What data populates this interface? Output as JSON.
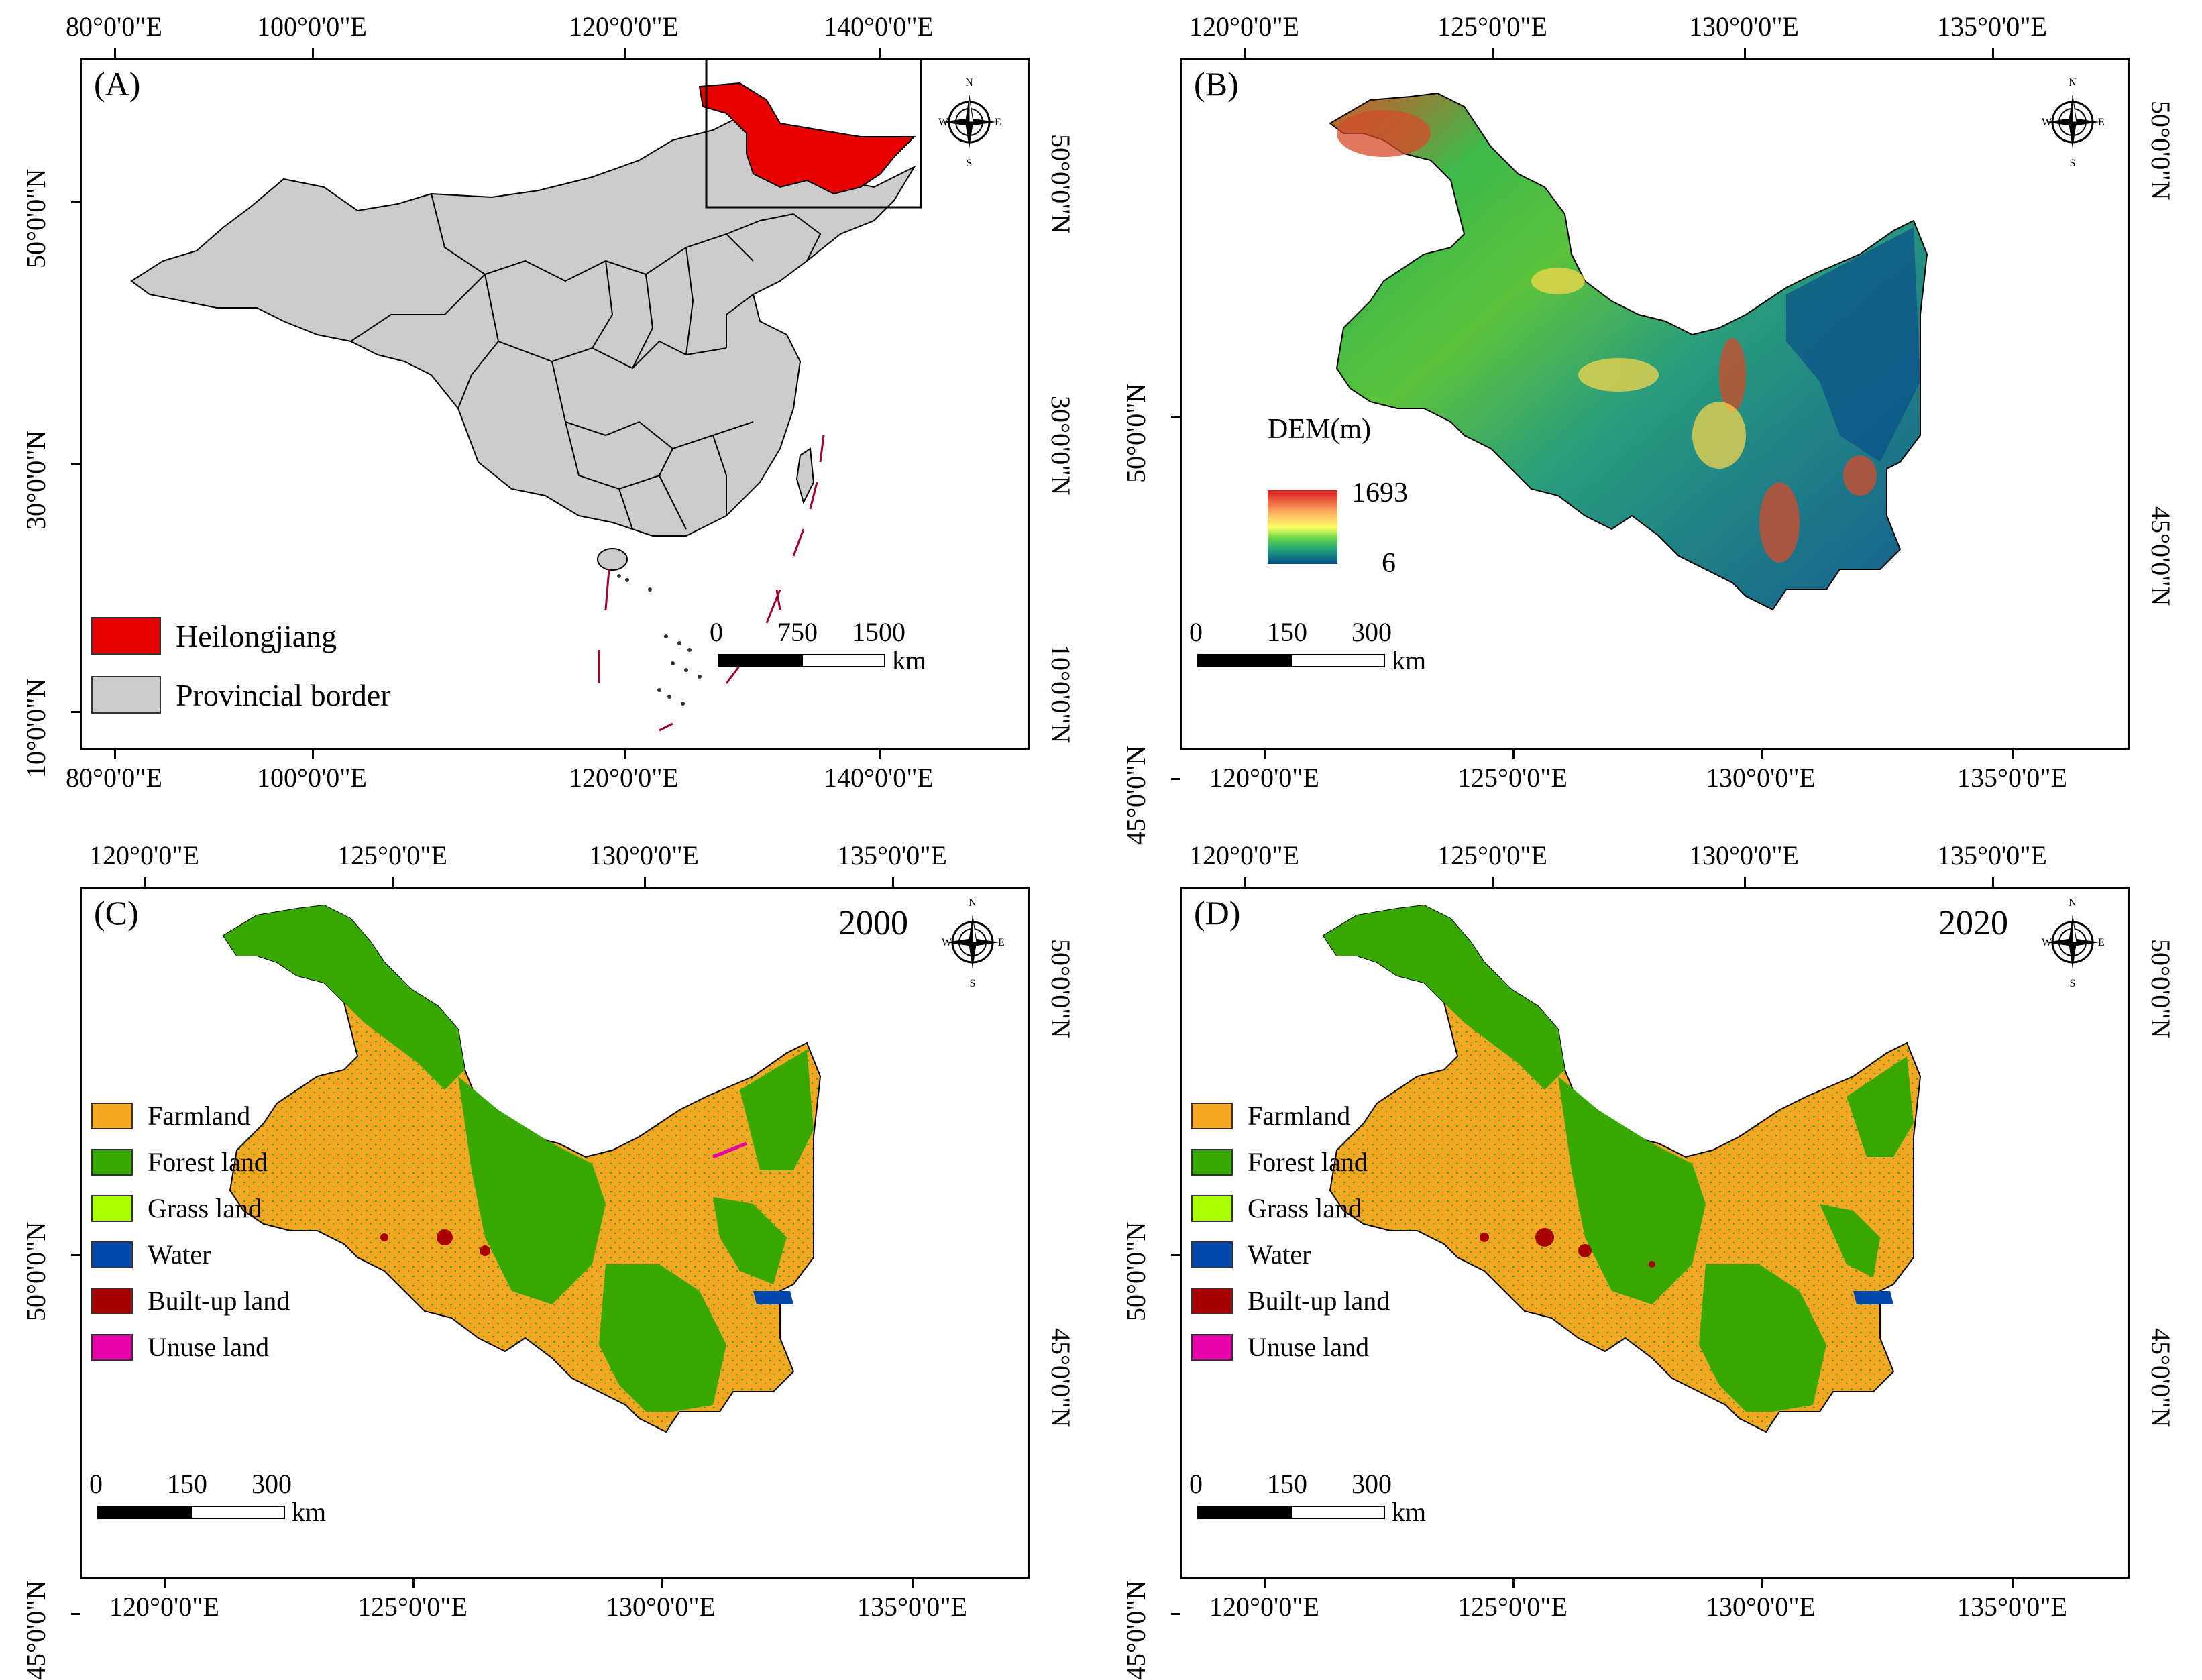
{
  "panels": {
    "a": {
      "label": "(A)",
      "top_ticks": [
        "80°0'0\"E",
        "100°0'0\"E",
        "120°0'0\"E",
        "140°0'0\"E"
      ],
      "bottom_ticks": [
        "80°0'0\"E",
        "100°0'0\"E",
        "120°0'0\"E",
        "140°0'0\"E"
      ],
      "left_ticks": [
        "50°0'0\"N",
        "30°0'0\"N",
        "10°0'0\"N"
      ],
      "right_ticks": [
        "50°0'0\"N",
        "30°0'0\"N",
        "10°0'0\"N"
      ],
      "legend": [
        {
          "label": "Heilongjiang",
          "color": "#e60000"
        },
        {
          "label": "Provincial border",
          "color": "#cccccc"
        }
      ],
      "scale": {
        "l0": "0",
        "l1": "750",
        "l2": "1500",
        "unit": "km"
      }
    },
    "b": {
      "label": "(B)",
      "top_ticks": [
        "120°0'0\"E",
        "125°0'0\"E",
        "130°0'0\"E",
        "135°0'0\"E"
      ],
      "bottom_ticks": [
        "120°0'0\"E",
        "125°0'0\"E",
        "130°0'0\"E",
        "135°0'0\"E"
      ],
      "left_ticks": [
        "50°0'0\"N",
        "45°0'0\"N"
      ],
      "right_ticks": [
        "50°0'0\"N",
        "45°0'0\"N"
      ],
      "dem": {
        "title": "DEM(m)",
        "max": "1693",
        "min": "6"
      },
      "scale": {
        "l0": "0",
        "l1": "150",
        "l2": "300",
        "unit": "km"
      }
    },
    "c": {
      "label": "(C)",
      "year": "2000",
      "top_ticks": [
        "120°0'0\"E",
        "125°0'0\"E",
        "130°0'0\"E",
        "135°0'0\"E"
      ],
      "bottom_ticks": [
        "120°0'0\"E",
        "125°0'0\"E",
        "130°0'0\"E",
        "135°0'0\"E"
      ],
      "left_ticks": [
        "50°0'0\"N",
        "45°0'0\"N"
      ],
      "right_ticks": [
        "50°0'0\"N",
        "45°0'0\"N"
      ],
      "legend": [
        {
          "label": "Farmland",
          "color": "#f5a623"
        },
        {
          "label": "Forest land",
          "color": "#38a800"
        },
        {
          "label": "Grass land",
          "color": "#aaff00"
        },
        {
          "label": "Water",
          "color": "#0047ab"
        },
        {
          "label": "Built-up land",
          "color": "#a80000"
        },
        {
          "label": "Unuse land",
          "color": "#e600a9"
        }
      ],
      "scale": {
        "l0": "0",
        "l1": "150",
        "l2": "300",
        "unit": "km"
      }
    },
    "d": {
      "label": "(D)",
      "year": "2020",
      "top_ticks": [
        "120°0'0\"E",
        "125°0'0\"E",
        "130°0'0\"E",
        "135°0'0\"E"
      ],
      "bottom_ticks": [
        "120°0'0\"E",
        "125°0'0\"E",
        "130°0'0\"E",
        "135°0'0\"E"
      ],
      "left_ticks": [
        "50°0'0\"N",
        "45°0'0\"N"
      ],
      "right_ticks": [
        "50°0'0\"N",
        "45°0'0\"N"
      ],
      "legend": [
        {
          "label": "Farmland",
          "color": "#f5a623"
        },
        {
          "label": "Forest land",
          "color": "#38a800"
        },
        {
          "label": "Grass land",
          "color": "#aaff00"
        },
        {
          "label": "Water",
          "color": "#0047ab"
        },
        {
          "label": "Built-up land",
          "color": "#a80000"
        },
        {
          "label": "Unuse land",
          "color": "#e600a9"
        }
      ],
      "scale": {
        "l0": "0",
        "l1": "150",
        "l2": "300",
        "unit": "km"
      }
    }
  },
  "compass": {
    "n": "N",
    "s": "S",
    "e": "E",
    "w": "W"
  }
}
